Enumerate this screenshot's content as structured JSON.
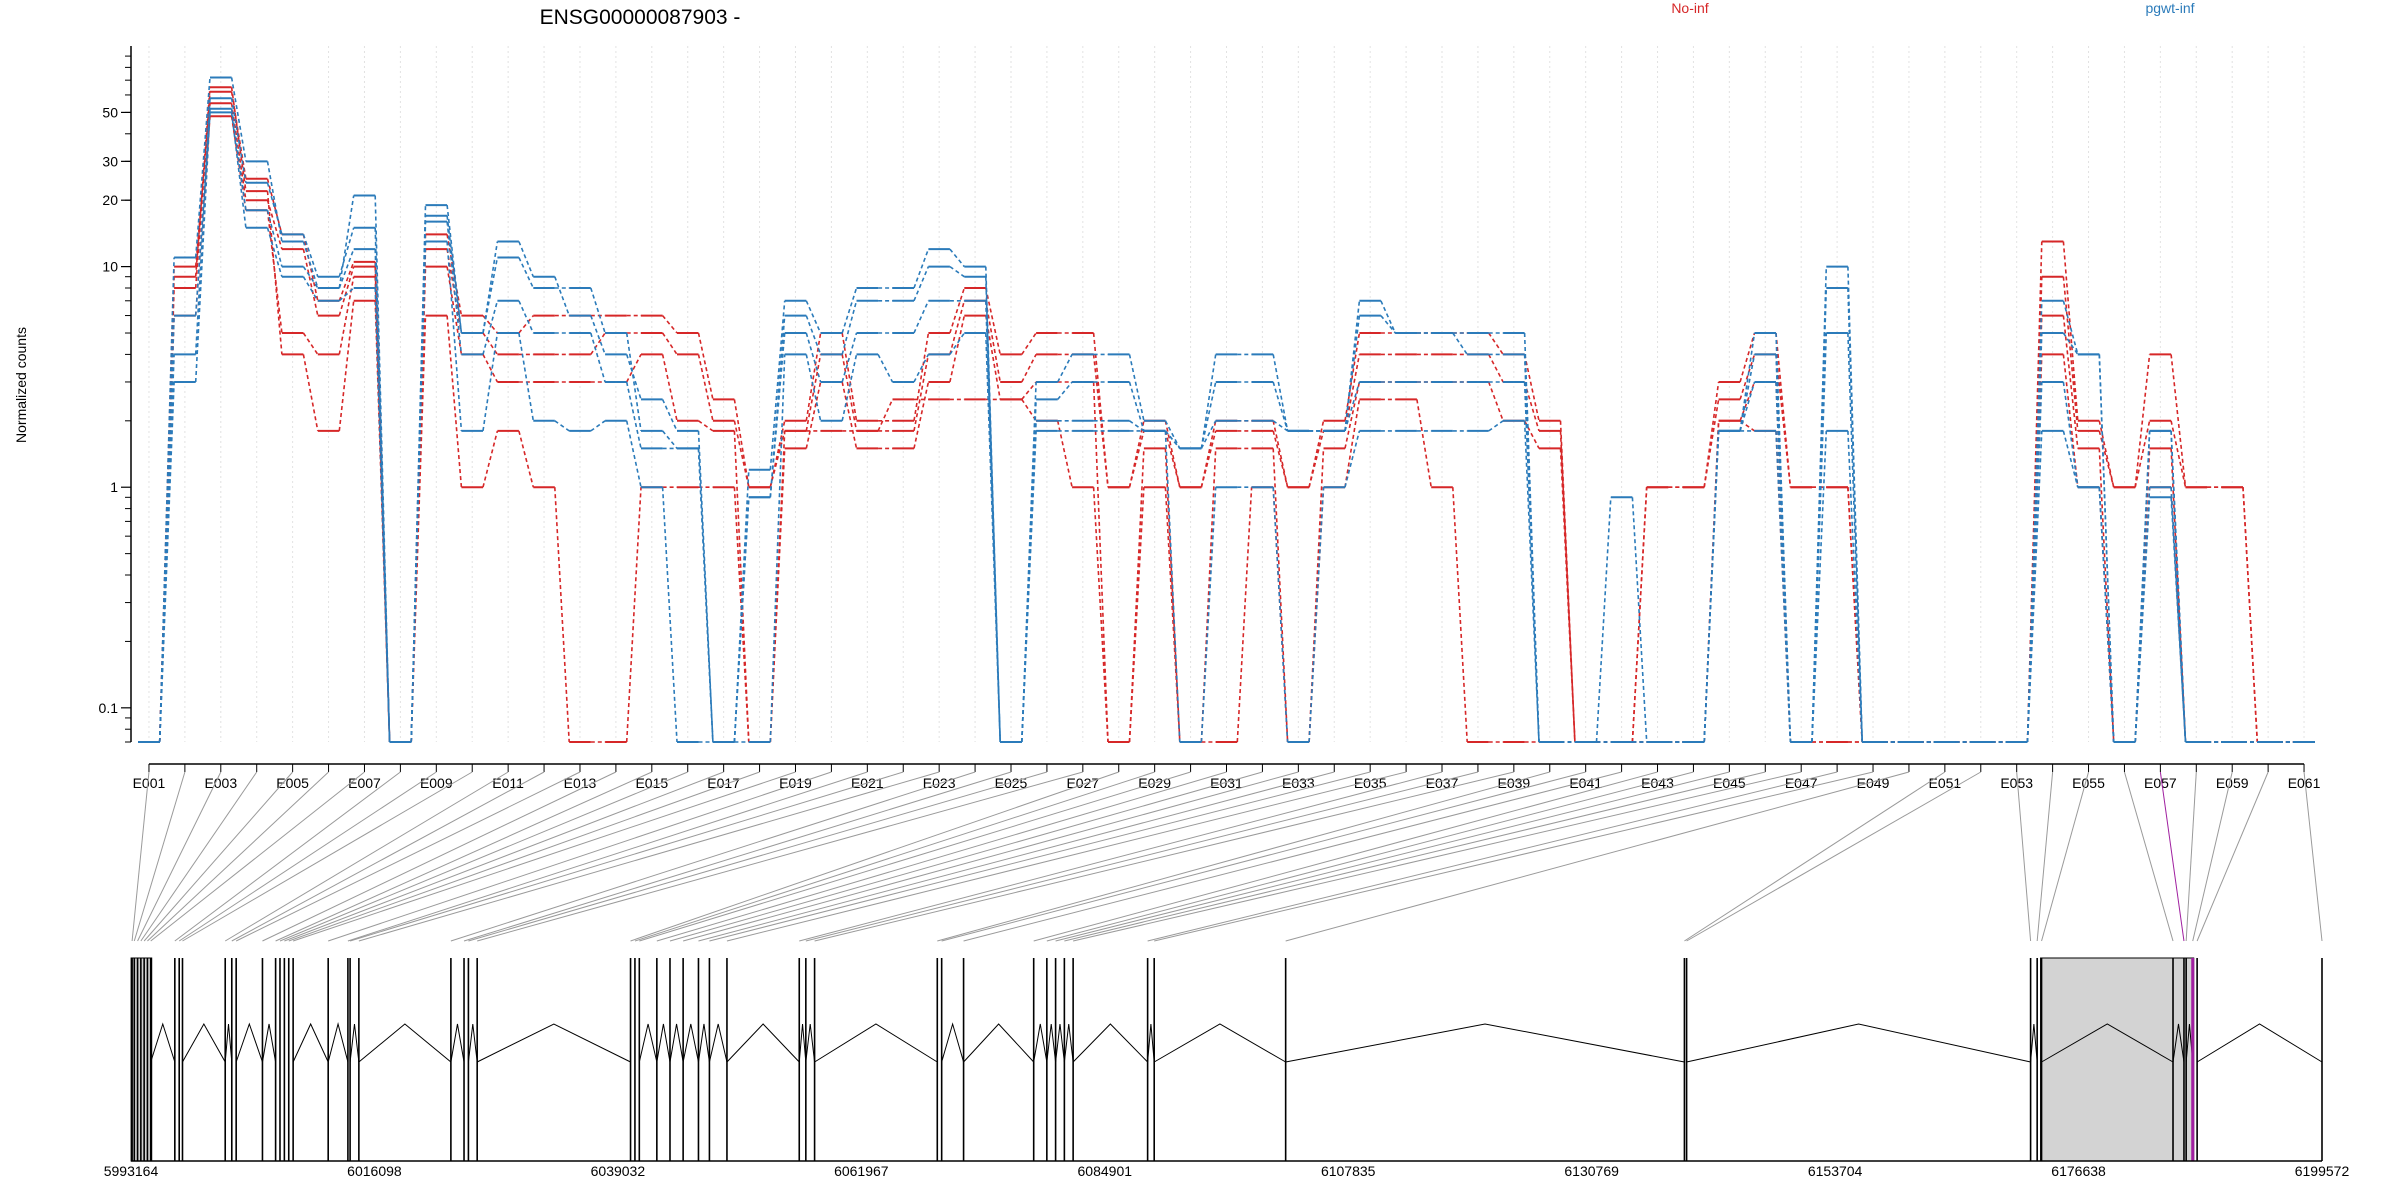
{
  "chart_data": {
    "type": "line",
    "title": "ENSG00000087903 -",
    "ylabel": "Normalized counts",
    "xlabel": "",
    "yscale": "log",
    "ylim": [
      0.07,
      100
    ],
    "yticks": [
      "0.1",
      "1",
      "10",
      "20",
      "30",
      "50"
    ],
    "grid": "vertical dotted lines at every exon bin",
    "legend": {
      "placement": "top-right",
      "entries": [
        {
          "label": "No-inf",
          "color": "#d62728"
        },
        {
          "label": "pgwt-inf",
          "color": "#2b7bba"
        }
      ]
    },
    "exon_tick_labels": [
      "E001",
      "E003",
      "E005",
      "E007",
      "E009",
      "E011",
      "E013",
      "E015",
      "E017",
      "E019",
      "E021",
      "E023",
      "E025",
      "E027",
      "E029",
      "E031",
      "E033",
      "E035",
      "E037",
      "E039",
      "E041",
      "E043",
      "E045",
      "E047",
      "E049",
      "E051",
      "E053",
      "E055",
      "E057",
      "E059",
      "E061"
    ],
    "n_exons": 61,
    "series": [
      {
        "name": "No-inf",
        "color": "#d62728",
        "values": [
          0.07,
          8,
          62,
          25,
          14,
          7,
          10.5,
          0.07,
          14,
          6,
          5,
          6,
          6,
          6,
          6,
          5,
          2.5,
          1,
          2,
          5,
          2,
          2,
          5,
          8,
          4,
          5,
          5,
          1,
          2,
          1,
          2,
          2,
          1,
          2,
          5,
          5,
          5,
          5,
          4,
          2,
          0.07,
          0.07,
          1,
          1,
          3,
          5,
          1,
          1,
          0.07,
          0.07,
          0.07,
          0.07,
          0.07,
          13,
          2,
          1,
          4,
          1,
          1,
          0.07,
          0.07
        ]
      },
      {
        "name": "No-inf",
        "color": "#d62728",
        "values": [
          0.07,
          10,
          55,
          20,
          12,
          6,
          10,
          0.07,
          12,
          5,
          4,
          4,
          4,
          5,
          5,
          4,
          2,
          1,
          1.8,
          4,
          1.8,
          1.8,
          4,
          7,
          3,
          4,
          4,
          1,
          1.8,
          1,
          1.8,
          1.8,
          1,
          1.8,
          4,
          4,
          4,
          4,
          3,
          1.8,
          0.07,
          0.07,
          1,
          1,
          2.5,
          4,
          1,
          1,
          0.07,
          0.07,
          0.07,
          0.07,
          0.07,
          9,
          1.8,
          1,
          2,
          1,
          1,
          0.07,
          0.07
        ]
      },
      {
        "name": "No-inf",
        "color": "#d62728",
        "values": [
          0.07,
          6,
          48,
          18,
          5,
          4,
          9,
          0.07,
          10,
          4,
          3,
          3,
          3,
          3,
          4,
          2,
          1.8,
          0.07,
          1.5,
          3,
          1.5,
          1.5,
          3,
          6,
          2.5,
          3,
          3,
          0.07,
          1.5,
          0.07,
          1.5,
          1.5,
          0.07,
          1.5,
          3,
          3,
          3,
          3,
          2,
          1.5,
          0.07,
          0.07,
          0.07,
          0.07,
          2,
          3,
          0.07,
          0.07,
          0.07,
          0.07,
          0.07,
          0.07,
          0.07,
          6,
          1.5,
          0.07,
          1.5,
          0.07,
          0.07,
          0.07,
          0.07
        ]
      },
      {
        "name": "No-inf",
        "color": "#d62728",
        "values": [
          0.07,
          9,
          65,
          22,
          4,
          1.8,
          7,
          0.07,
          6,
          1,
          1.8,
          1,
          0.07,
          0.07,
          1,
          1,
          1,
          0.07,
          1.8,
          1.8,
          1.8,
          2.5,
          2.5,
          2.5,
          2.5,
          2,
          1,
          0.07,
          1,
          0.07,
          0.07,
          1,
          0.07,
          1,
          2.5,
          2.5,
          1,
          0.07,
          0.07,
          0.07,
          0.07,
          0.07,
          0.07,
          0.07,
          2,
          1.8,
          0.07,
          0.07,
          0.07,
          0.07,
          0.07,
          0.07,
          0.07,
          4,
          1,
          0.07,
          1,
          0.07,
          0.07,
          0.07,
          0.07
        ]
      },
      {
        "name": "pgwt-inf",
        "color": "#2b7bba",
        "values": [
          0.07,
          11,
          72,
          30,
          13,
          8,
          21,
          0.07,
          19,
          5,
          13,
          9,
          6,
          4,
          2.5,
          1.8,
          0.07,
          1.2,
          7,
          5,
          8,
          8,
          12,
          10,
          0.07,
          3,
          4,
          4,
          2,
          1.5,
          4,
          4,
          1.8,
          1.8,
          7,
          5,
          5,
          5,
          5,
          0.07,
          0.07,
          0.07,
          0.07,
          0.07,
          1.8,
          5,
          0.07,
          10,
          0.07,
          0.07,
          0.07,
          0.07,
          0.07,
          7,
          4,
          0.07,
          1.8,
          0.07,
          0.07,
          0.07,
          0.07
        ]
      },
      {
        "name": "pgwt-inf",
        "color": "#2b7bba",
        "values": [
          0.07,
          4,
          58,
          24,
          14,
          9,
          15,
          0.07,
          17,
          5,
          11,
          8,
          8,
          5,
          1.8,
          1.5,
          0.07,
          0.9,
          6,
          4,
          7,
          7,
          10,
          9,
          0.07,
          2.5,
          3,
          3,
          1.8,
          1.5,
          3,
          3,
          1.8,
          1.8,
          6,
          5,
          5,
          4,
          4,
          0.07,
          0.07,
          0.07,
          0.07,
          0.07,
          1.8,
          4,
          0.07,
          8,
          0.07,
          0.07,
          0.07,
          0.07,
          0.07,
          5,
          4,
          0.07,
          1.8,
          0.07,
          0.07,
          0.07,
          0.07
        ]
      },
      {
        "name": "pgwt-inf",
        "color": "#2b7bba",
        "values": [
          0.07,
          6,
          52,
          18,
          10,
          8,
          12,
          0.07,
          16,
          4,
          7,
          5,
          5,
          3,
          1.5,
          1.5,
          0.07,
          0.9,
          5,
          3,
          5,
          5,
          7,
          7,
          0.07,
          2,
          2,
          2,
          1.8,
          1.5,
          2,
          2,
          1.8,
          1.8,
          3,
          3,
          3,
          3,
          3,
          0.07,
          0.07,
          0.07,
          0.07,
          0.07,
          1.8,
          3,
          0.07,
          5,
          0.07,
          0.07,
          0.07,
          0.07,
          0.07,
          3,
          1,
          0.07,
          1,
          0.07,
          0.07,
          0.07,
          0.07
        ]
      },
      {
        "name": "pgwt-inf",
        "color": "#2b7bba",
        "values": [
          0.07,
          3,
          50,
          15,
          9,
          7,
          8,
          0.07,
          13,
          1.8,
          5,
          2,
          1.8,
          2,
          1,
          0.07,
          0.07,
          0.07,
          4,
          2,
          4,
          3,
          4,
          5,
          0.07,
          1.8,
          1.8,
          1.8,
          1.8,
          0.07,
          1,
          1,
          0.07,
          1,
          1.8,
          1.8,
          1.8,
          1.8,
          2,
          0.07,
          0.07,
          0.9,
          0.07,
          0.07,
          1.8,
          1.8,
          0.07,
          1.8,
          0.07,
          0.07,
          0.07,
          0.07,
          0.07,
          1.8,
          1,
          0.07,
          0.9,
          0.07,
          0.07,
          0.07,
          0.07
        ]
      }
    ],
    "genomic_axis": {
      "tick_labels": [
        "5993164",
        "6016098",
        "6039032",
        "6061967",
        "6084901",
        "6107835",
        "6130769",
        "6153704",
        "6176638",
        "6199572"
      ],
      "range": [
        5993164,
        6199572
      ],
      "highlight_color": "#a020a0"
    }
  }
}
